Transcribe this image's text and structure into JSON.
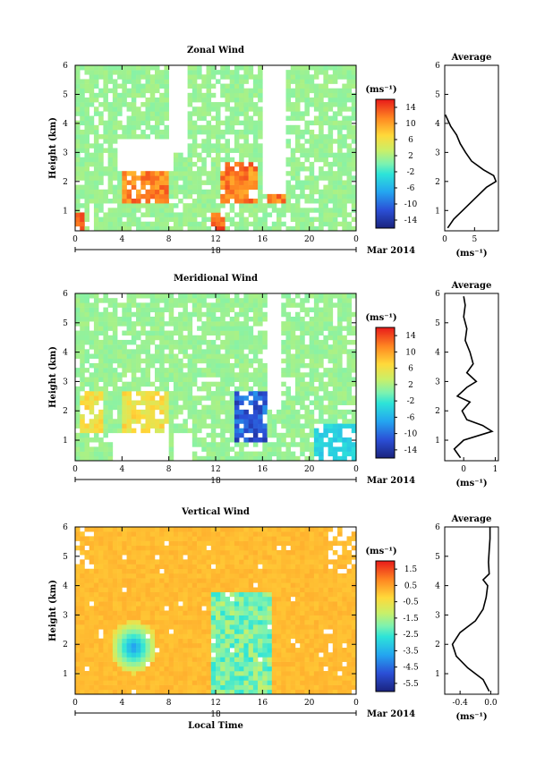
{
  "chart_data": [
    {
      "type": "heatmap",
      "title": "Zonal Wind",
      "ylabel": "Height (km)",
      "x_ticks": [
        "0",
        "4",
        "8",
        "12",
        "16",
        "20",
        "0"
      ],
      "y_ticks": [
        "1",
        "2",
        "3",
        "4",
        "5",
        "6"
      ],
      "ylim": [
        0.3,
        6.0
      ],
      "xlim": [
        0,
        24
      ],
      "date_label": "18",
      "month_label": "Mar 2014",
      "colorbar_unit": "(ms⁻¹)",
      "colorbar_ticks": [
        "14",
        "10",
        "6",
        "2",
        "-2",
        "-6",
        "-10",
        "-14"
      ],
      "colorbar_range": [
        -16,
        16
      ],
      "average": {
        "title": "Average",
        "x_ticks": [
          "0",
          "5",
          ""
        ],
        "xlim": [
          0,
          9
        ],
        "xlabel": "(ms⁻¹)",
        "profile": [
          [
            0.4,
            0.5
          ],
          [
            0.7,
            1.5
          ],
          [
            1.0,
            3.0
          ],
          [
            1.4,
            5.0
          ],
          [
            1.8,
            7.0
          ],
          [
            2.0,
            8.6
          ],
          [
            2.2,
            8.2
          ],
          [
            2.4,
            6.5
          ],
          [
            2.7,
            4.5
          ],
          [
            3.0,
            3.5
          ],
          [
            3.3,
            2.6
          ],
          [
            3.6,
            2.0
          ],
          [
            3.9,
            1.0
          ],
          [
            4.3,
            0.1
          ]
        ]
      }
    },
    {
      "type": "heatmap",
      "title": "Meridional Wind",
      "ylabel": "Height (km)",
      "x_ticks": [
        "0",
        "4",
        "8",
        "12",
        "16",
        "20",
        "0"
      ],
      "y_ticks": [
        "1",
        "2",
        "3",
        "4",
        "5",
        "6"
      ],
      "ylim": [
        0.3,
        6.0
      ],
      "xlim": [
        0,
        24
      ],
      "date_label": "18",
      "month_label": "Mar 2014",
      "colorbar_unit": "(ms⁻¹)",
      "colorbar_ticks": [
        "14",
        "10",
        "6",
        "2",
        "-2",
        "-6",
        "-10",
        "-14"
      ],
      "colorbar_range": [
        -16,
        16
      ],
      "average": {
        "title": "Average",
        "x_ticks": [
          "0",
          "1"
        ],
        "xlim": [
          -0.6,
          1.1
        ],
        "xlabel": "(ms⁻¹)",
        "profile": [
          [
            0.4,
            -0.1
          ],
          [
            0.7,
            -0.3
          ],
          [
            1.0,
            0.0
          ],
          [
            1.3,
            0.9
          ],
          [
            1.5,
            0.6
          ],
          [
            1.7,
            0.1
          ],
          [
            2.0,
            -0.05
          ],
          [
            2.3,
            0.2
          ],
          [
            2.5,
            -0.2
          ],
          [
            2.8,
            0.1
          ],
          [
            3.0,
            0.4
          ],
          [
            3.3,
            0.1
          ],
          [
            3.6,
            0.3
          ],
          [
            4.0,
            0.2
          ],
          [
            4.4,
            0.05
          ],
          [
            4.8,
            0.1
          ],
          [
            5.2,
            0.0
          ],
          [
            5.6,
            0.05
          ],
          [
            5.9,
            0.0
          ]
        ]
      }
    },
    {
      "type": "heatmap",
      "title": "Vertical Wind",
      "ylabel": "Height (km)",
      "xlabel": "Local Time",
      "x_ticks": [
        "0",
        "4",
        "8",
        "12",
        "16",
        "20",
        "0"
      ],
      "y_ticks": [
        "1",
        "2",
        "3",
        "4",
        "5",
        "6"
      ],
      "ylim": [
        0.3,
        6.0
      ],
      "xlim": [
        0,
        24
      ],
      "date_label": "18",
      "month_label": "Mar 2014",
      "colorbar_unit": "(ms⁻¹)",
      "colorbar_ticks": [
        "1.5",
        "0.5",
        "-0.5",
        "-1.5",
        "-2.5",
        "-3.5",
        "-4.5",
        "-5.5"
      ],
      "colorbar_range": [
        -6,
        2
      ],
      "average": {
        "title": "Average",
        "x_ticks": [
          "-0.4",
          "0.0"
        ],
        "xlim": [
          -0.6,
          0.1
        ],
        "xlabel": "(ms⁻¹)",
        "profile": [
          [
            0.4,
            -0.02
          ],
          [
            0.8,
            -0.1
          ],
          [
            1.2,
            -0.3
          ],
          [
            1.6,
            -0.45
          ],
          [
            2.0,
            -0.5
          ],
          [
            2.4,
            -0.4
          ],
          [
            2.8,
            -0.2
          ],
          [
            3.2,
            -0.1
          ],
          [
            3.6,
            -0.06
          ],
          [
            4.0,
            -0.04
          ],
          [
            4.2,
            -0.1
          ],
          [
            4.4,
            -0.02
          ],
          [
            4.8,
            -0.03
          ],
          [
            5.2,
            -0.02
          ],
          [
            5.6,
            -0.01
          ],
          [
            6.0,
            -0.01
          ]
        ]
      }
    }
  ]
}
